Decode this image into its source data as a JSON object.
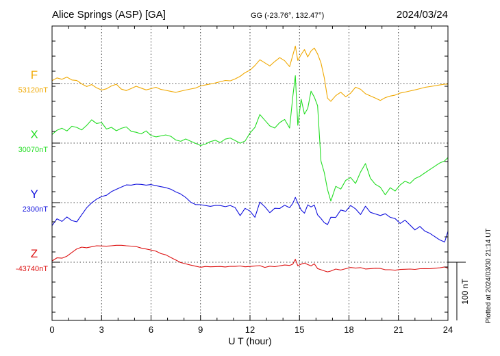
{
  "header": {
    "station": "Alice Springs (ASP)  [GA]",
    "coords": "GG (-23.76°, 132.47°)",
    "date": "2024/03/24"
  },
  "footer_note": "Plotted at 2024/03/30 21:14 UT",
  "scale_label": "100 nT",
  "chart_data": {
    "type": "line",
    "xlabel": "U T (hour)",
    "xlim": [
      0,
      24
    ],
    "x_ticks": [
      "0",
      "3",
      "6",
      "9",
      "12",
      "15",
      "18",
      "21",
      "24"
    ],
    "grid": true,
    "scale_bar_nT": 100,
    "series": [
      {
        "name": "F",
        "baseline_label": "53120nT",
        "baseline": 53120,
        "color": "#f0a800",
        "x": [
          0,
          0.3,
          0.6,
          0.9,
          1.2,
          1.5,
          1.8,
          2.1,
          2.4,
          2.7,
          3.0,
          3.3,
          3.6,
          3.9,
          4.2,
          4.5,
          4.8,
          5.1,
          5.4,
          5.7,
          6.0,
          6.3,
          6.6,
          6.9,
          7.2,
          7.5,
          7.8,
          8.1,
          8.4,
          8.7,
          9.0,
          9.3,
          9.6,
          9.9,
          10.2,
          10.5,
          10.8,
          11.1,
          11.4,
          11.7,
          12.0,
          12.3,
          12.6,
          12.9,
          13.2,
          13.5,
          13.8,
          14.1,
          14.4,
          14.6,
          14.75,
          14.9,
          15.1,
          15.3,
          15.5,
          15.7,
          15.9,
          16.1,
          16.3,
          16.5,
          16.7,
          16.9,
          17.2,
          17.5,
          17.8,
          18.1,
          18.4,
          18.7,
          19.0,
          19.3,
          19.6,
          19.9,
          20.2,
          20.5,
          20.8,
          21.1,
          21.4,
          21.7,
          22.0,
          22.3,
          22.6,
          22.9,
          23.2,
          23.5,
          23.8,
          24.0
        ],
        "y": [
          53125,
          53130,
          53128,
          53132,
          53127,
          53126,
          53120,
          53115,
          53118,
          53112,
          53108,
          53110,
          53115,
          53118,
          53110,
          53108,
          53112,
          53116,
          53113,
          53110,
          53112,
          53114,
          53110,
          53108,
          53106,
          53104,
          53106,
          53108,
          53110,
          53112,
          53116,
          53118,
          53120,
          53122,
          53124,
          53126,
          53125,
          53128,
          53132,
          53138,
          53142,
          53150,
          53160,
          53155,
          53150,
          53158,
          53165,
          53160,
          53150,
          53170,
          53185,
          53160,
          53170,
          53178,
          53165,
          53175,
          53180,
          53170,
          53155,
          53130,
          53095,
          53090,
          53100,
          53106,
          53098,
          53104,
          53114,
          53110,
          53102,
          53098,
          53094,
          53090,
          53095,
          53098,
          53100,
          53104,
          53106,
          53108,
          53110,
          53112,
          53114,
          53115,
          53116,
          53117,
          53118,
          53118
        ]
      },
      {
        "name": "X",
        "baseline_label": "30070nT",
        "baseline": 30070,
        "color": "#22dd22",
        "x": [
          0,
          0.3,
          0.6,
          0.9,
          1.2,
          1.5,
          1.8,
          2.1,
          2.4,
          2.7,
          3.0,
          3.3,
          3.6,
          3.9,
          4.2,
          4.5,
          4.8,
          5.1,
          5.4,
          5.7,
          6.0,
          6.3,
          6.6,
          6.9,
          7.2,
          7.5,
          7.8,
          8.1,
          8.4,
          8.7,
          9.0,
          9.3,
          9.6,
          9.9,
          10.2,
          10.5,
          10.8,
          11.1,
          11.4,
          11.7,
          12.0,
          12.3,
          12.6,
          12.9,
          13.2,
          13.5,
          13.8,
          14.1,
          14.4,
          14.6,
          14.75,
          14.9,
          15.1,
          15.3,
          15.5,
          15.7,
          15.9,
          16.1,
          16.3,
          16.5,
          16.7,
          16.9,
          17.2,
          17.5,
          17.8,
          18.1,
          18.4,
          18.7,
          19.0,
          19.3,
          19.6,
          19.9,
          20.2,
          20.5,
          20.8,
          21.1,
          21.4,
          21.7,
          22.0,
          22.3,
          22.6,
          22.9,
          23.2,
          23.5,
          23.8,
          24.0
        ],
        "y": [
          30085,
          30092,
          30095,
          30090,
          30098,
          30096,
          30092,
          30100,
          30110,
          30104,
          30106,
          30095,
          30098,
          30092,
          30096,
          30098,
          30090,
          30088,
          30085,
          30090,
          30082,
          30080,
          30082,
          30084,
          30082,
          30076,
          30074,
          30078,
          30074,
          30070,
          30066,
          30068,
          30072,
          30074,
          30070,
          30076,
          30078,
          30074,
          30070,
          30074,
          30088,
          30098,
          30120,
          30110,
          30100,
          30096,
          30105,
          30110,
          30095,
          30150,
          30185,
          30100,
          30145,
          30120,
          30130,
          30160,
          30150,
          30135,
          30040,
          30020,
          29990,
          29970,
          29995,
          29990,
          30005,
          30010,
          30000,
          30020,
          30035,
          30010,
          30000,
          29995,
          29982,
          29994,
          29988,
          29998,
          30004,
          30000,
          30008,
          30012,
          30018,
          30024,
          30030,
          30036,
          30040,
          30046
        ]
      },
      {
        "name": "Y",
        "baseline_label": "2300nT",
        "baseline": 2300,
        "color": "#1111dd",
        "x": [
          0,
          0.3,
          0.6,
          0.9,
          1.2,
          1.5,
          1.8,
          2.1,
          2.4,
          2.7,
          3.0,
          3.3,
          3.6,
          3.9,
          4.2,
          4.5,
          4.8,
          5.1,
          5.4,
          5.7,
          6.0,
          6.3,
          6.6,
          6.9,
          7.2,
          7.5,
          7.8,
          8.1,
          8.4,
          8.7,
          9.0,
          9.3,
          9.6,
          9.9,
          10.2,
          10.5,
          10.8,
          11.1,
          11.4,
          11.7,
          12.0,
          12.3,
          12.6,
          12.9,
          13.2,
          13.5,
          13.8,
          14.1,
          14.4,
          14.6,
          14.75,
          14.9,
          15.1,
          15.3,
          15.5,
          15.7,
          15.9,
          16.1,
          16.3,
          16.5,
          16.7,
          16.9,
          17.2,
          17.5,
          17.8,
          18.1,
          18.4,
          18.7,
          19.0,
          19.3,
          19.6,
          19.9,
          20.2,
          20.5,
          20.8,
          21.1,
          21.4,
          21.7,
          22.0,
          22.3,
          22.6,
          22.9,
          23.2,
          23.5,
          23.8,
          24.0
        ],
        "y": [
          2260,
          2272,
          2268,
          2276,
          2270,
          2268,
          2280,
          2292,
          2300,
          2306,
          2310,
          2312,
          2318,
          2322,
          2326,
          2330,
          2330,
          2332,
          2332,
          2331,
          2332,
          2330,
          2328,
          2326,
          2323,
          2318,
          2314,
          2308,
          2300,
          2296,
          2296,
          2295,
          2294,
          2296,
          2296,
          2294,
          2296,
          2292,
          2278,
          2290,
          2285,
          2274,
          2300,
          2292,
          2282,
          2290,
          2290,
          2296,
          2292,
          2300,
          2310,
          2300,
          2288,
          2282,
          2296,
          2292,
          2295,
          2278,
          2272,
          2265,
          2262,
          2275,
          2275,
          2288,
          2286,
          2296,
          2290,
          2280,
          2294,
          2283,
          2280,
          2277,
          2280,
          2274,
          2272,
          2264,
          2270,
          2262,
          2254,
          2260,
          2252,
          2248,
          2242,
          2236,
          2232,
          2250
        ]
      },
      {
        "name": "Z",
        "baseline_label": "-43740nT",
        "baseline": -43740,
        "color": "#dd1111",
        "x": [
          0,
          0.3,
          0.6,
          0.9,
          1.2,
          1.5,
          1.8,
          2.1,
          2.4,
          2.7,
          3.0,
          3.3,
          3.6,
          3.9,
          4.2,
          4.5,
          4.8,
          5.1,
          5.4,
          5.7,
          6.0,
          6.3,
          6.6,
          6.9,
          7.2,
          7.5,
          7.8,
          8.1,
          8.4,
          8.7,
          9.0,
          9.3,
          9.6,
          9.9,
          10.2,
          10.5,
          10.8,
          11.1,
          11.4,
          11.7,
          12.0,
          12.3,
          12.6,
          12.9,
          13.2,
          13.5,
          13.8,
          14.1,
          14.4,
          14.6,
          14.75,
          14.9,
          15.1,
          15.3,
          15.5,
          15.7,
          15.9,
          16.1,
          16.3,
          16.5,
          16.7,
          16.9,
          17.2,
          17.5,
          17.8,
          18.1,
          18.4,
          18.7,
          19.0,
          19.3,
          19.6,
          19.9,
          20.2,
          20.5,
          20.8,
          21.1,
          21.4,
          21.7,
          22.0,
          22.3,
          22.6,
          22.9,
          23.2,
          23.5,
          23.8,
          24.0
        ],
        "y": [
          -43737,
          -43732,
          -43733,
          -43730,
          -43724,
          -43718,
          -43715,
          -43716,
          -43714,
          -43712,
          -43712,
          -43712,
          -43711,
          -43710,
          -43710,
          -43711,
          -43712,
          -43713,
          -43716,
          -43718,
          -43720,
          -43722,
          -43726,
          -43728,
          -43732,
          -43736,
          -43740,
          -43742,
          -43744,
          -43746,
          -43748,
          -43747,
          -43748,
          -43748,
          -43748,
          -43749,
          -43748,
          -43748,
          -43747,
          -43748,
          -43747,
          -43746,
          -43745,
          -43748,
          -43746,
          -43747,
          -43746,
          -43745,
          -43746,
          -43744,
          -43736,
          -43747,
          -43744,
          -43742,
          -43744,
          -43746,
          -43742,
          -43750,
          -43752,
          -43754,
          -43756,
          -43755,
          -43752,
          -43754,
          -43752,
          -43750,
          -43751,
          -43750,
          -43752,
          -43751,
          -43750,
          -43750,
          -43752,
          -43752,
          -43753,
          -43752,
          -43752,
          -43752,
          -43753,
          -43752,
          -43752,
          -43752,
          -43751,
          -43750,
          -43748,
          -43750
        ]
      }
    ]
  }
}
